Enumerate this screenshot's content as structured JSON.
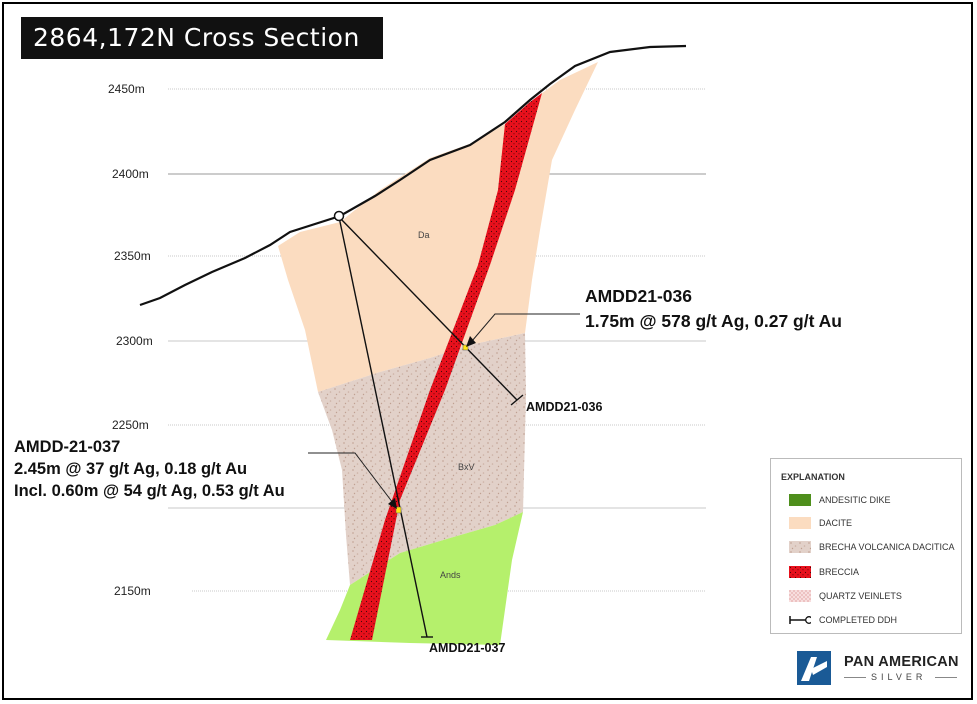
{
  "title": "2864,172N Cross Section",
  "elevations": [
    "2450m",
    "2400m",
    "2350m",
    "2300m",
    "2250m",
    "2150m"
  ],
  "units": {
    "dacite": "Da",
    "breccia_volcanica": "BxV",
    "andesite": "Ands"
  },
  "holes": {
    "hole_036": "AMDD21-036",
    "hole_037": "AMDD21-037"
  },
  "callouts": {
    "c036": {
      "line1": "AMDD21-036",
      "line2": "1.75m @ 578 g/t Ag, 0.27 g/t Au"
    },
    "c037": {
      "line1": "AMDD-21-037",
      "line2": "2.45m @ 37 g/t Ag, 0.18 g/t Au",
      "line3": "Incl. 0.60m @ 54 g/t Ag, 0.53 g/t Au"
    }
  },
  "legend": {
    "title": "EXPLANATION",
    "items": [
      {
        "label": "ANDESITIC DIKE",
        "color": "#4e8f1c"
      },
      {
        "label": "DACITE",
        "color": "#fbdcc0"
      },
      {
        "label": "BRECHA VOLCANICA DACITICA",
        "color": "#e2d1c9"
      },
      {
        "label": "BRECCIA",
        "color": "#e8101c"
      },
      {
        "label": "QUARTZ VEINLETS",
        "color": "#f3c8c8"
      },
      {
        "label": "COMPLETED DDH",
        "color": "#000000"
      }
    ]
  },
  "logo": {
    "name": "PAN AMERICAN",
    "sub": "SILVER",
    "mark_color": "#1a5a96"
  },
  "colors": {
    "dacite": "#fbdcc0",
    "bxv": "#e2d1c9",
    "andesite": "#b5f06c",
    "breccia": "#e8101c"
  }
}
